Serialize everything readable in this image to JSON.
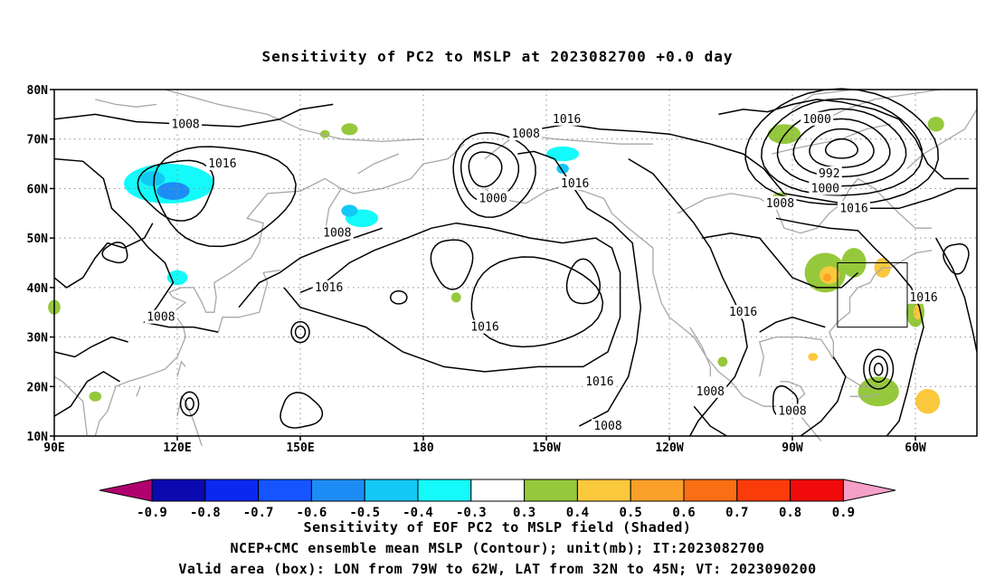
{
  "title": "Sensitivity of PC2 to MSLP at 2023082700 +0.0 day",
  "map": {
    "lon_ticks": [
      "90E",
      "120E",
      "150E",
      "180",
      "150W",
      "120W",
      "90W",
      "60W"
    ],
    "lat_ticks": [
      "80N",
      "70N",
      "60N",
      "50N",
      "40N",
      "30N",
      "20N",
      "10N"
    ],
    "extent": {
      "lon_min": 90,
      "lon_max": 315,
      "lat_min": 10,
      "lat_max": 80
    },
    "grid": "dotted",
    "box": {
      "lon_min": 281,
      "lon_max": 298,
      "lat_min": 32,
      "lat_max": 45
    }
  },
  "contour_labels": [
    {
      "text": "1016",
      "lon": 131,
      "lat": 65
    },
    {
      "text": "1008",
      "lon": 122,
      "lat": 73
    },
    {
      "text": "1008",
      "lon": 159,
      "lat": 51
    },
    {
      "text": "1016",
      "lon": 157,
      "lat": 40
    },
    {
      "text": "1008",
      "lon": 116,
      "lat": 34
    },
    {
      "text": "1016",
      "lon": 215,
      "lat": 74
    },
    {
      "text": "1008",
      "lon": 205,
      "lat": 71
    },
    {
      "text": "1000",
      "lon": 197,
      "lat": 58
    },
    {
      "text": "1016",
      "lon": 217,
      "lat": 61
    },
    {
      "text": "1016",
      "lon": 195,
      "lat": 32
    },
    {
      "text": "1016",
      "lon": 223,
      "lat": 21
    },
    {
      "text": "1008",
      "lon": 225,
      "lat": 12
    },
    {
      "text": "1000",
      "lon": 276,
      "lat": 74
    },
    {
      "text": "992",
      "lon": 279,
      "lat": 63
    },
    {
      "text": "1000",
      "lon": 278,
      "lat": 60
    },
    {
      "text": "1008",
      "lon": 267,
      "lat": 57
    },
    {
      "text": "1016",
      "lon": 285,
      "lat": 56
    },
    {
      "text": "1016",
      "lon": 258,
      "lat": 35
    },
    {
      "text": "1008",
      "lon": 250,
      "lat": 19
    },
    {
      "text": "1008",
      "lon": 270,
      "lat": 15
    },
    {
      "text": "1016",
      "lon": 302,
      "lat": 38
    }
  ],
  "colorbar": {
    "labels": [
      "-0.9",
      "-0.8",
      "-0.7",
      "-0.6",
      "-0.5",
      "-0.4",
      "-0.3",
      "0.3",
      "0.4",
      "0.5",
      "0.6",
      "0.7",
      "0.8",
      "0.9"
    ],
    "colors": [
      "#b0006e",
      "#0a0ab0",
      "#0a28f0",
      "#1455ff",
      "#1e8cf5",
      "#14c8f5",
      "#14fafa",
      "#ffffff",
      "#96c83c",
      "#fac83c",
      "#faa028",
      "#fa6e14",
      "#fa3c0a",
      "#f00a0a",
      "#f5a0c8"
    ]
  },
  "captions": [
    "Sensitivity of EOF PC2 to MSLP field (Shaded)",
    "NCEP+CMC ensemble mean MSLP (Contour); unit(mb); IT:2023082700",
    "Valid area (box): LON from 79W to 62W, LAT from 32N to 45N; VT: 2023090200"
  ]
}
